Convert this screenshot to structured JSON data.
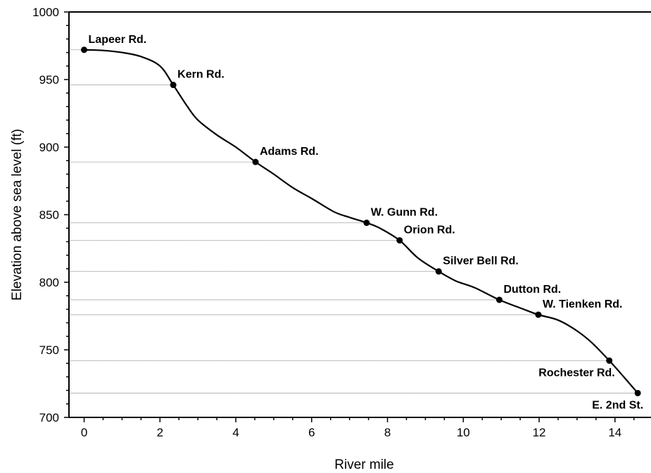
{
  "chart_data": {
    "type": "line",
    "xlabel": "River mile",
    "ylabel": "Elevation above sea level (ft)",
    "xlim": [
      -0.4,
      14.95
    ],
    "ylim": [
      700,
      1000
    ],
    "xticks": [
      0,
      2,
      4,
      6,
      8,
      10,
      12,
      14
    ],
    "xtick_labels": [
      "0",
      "2",
      "4",
      "6",
      "8",
      "10",
      "12",
      "14"
    ],
    "yticks": [
      700,
      750,
      800,
      850,
      900,
      950,
      1000
    ],
    "ytick_labels": [
      "700",
      "750",
      "800",
      "850",
      "900",
      "950",
      "1000"
    ],
    "grid": "dotted horizontal reference lines from the y-axis to each labeled point",
    "profile": {
      "x": [
        0,
        0.5,
        1.0,
        1.5,
        2.0,
        2.35,
        2.7,
        3.0,
        3.5,
        4.0,
        4.52,
        5.0,
        5.5,
        6.0,
        6.6,
        7.0,
        7.45,
        7.8,
        8.32,
        8.8,
        9.35,
        9.8,
        10.3,
        10.95,
        11.5,
        11.98,
        12.5,
        13.0,
        13.4,
        13.85,
        14.2,
        14.6
      ],
      "y": [
        972,
        971.5,
        970,
        967,
        960,
        946,
        931,
        920,
        909,
        900,
        889,
        880,
        870,
        862,
        852,
        848,
        844,
        840,
        831,
        818,
        808,
        801,
        796,
        787,
        781,
        776,
        772,
        764,
        755,
        742,
        731,
        718
      ]
    },
    "points": [
      {
        "label": "Lapeer Rd.",
        "x": 0,
        "y": 972,
        "anchor": "right-above"
      },
      {
        "label": "Kern Rd.",
        "x": 2.35,
        "y": 946,
        "anchor": "right-above"
      },
      {
        "label": "Adams Rd.",
        "x": 4.52,
        "y": 889,
        "anchor": "right-above"
      },
      {
        "label": "W. Gunn Rd.",
        "x": 7.45,
        "y": 844,
        "anchor": "right-above"
      },
      {
        "label": "Orion Rd.",
        "x": 8.32,
        "y": 831,
        "anchor": "right-above"
      },
      {
        "label": "Silver Bell Rd.",
        "x": 9.35,
        "y": 808,
        "anchor": "right-above"
      },
      {
        "label": "Dutton Rd.",
        "x": 10.95,
        "y": 787,
        "anchor": "right-above"
      },
      {
        "label": "W. Tienken Rd.",
        "x": 11.98,
        "y": 776,
        "anchor": "right-above"
      },
      {
        "label": "Rochester Rd.",
        "x": 13.85,
        "y": 742,
        "anchor": "left-below"
      },
      {
        "label": "E. 2nd St.",
        "x": 14.6,
        "y": 718,
        "anchor": "left-below"
      }
    ]
  }
}
